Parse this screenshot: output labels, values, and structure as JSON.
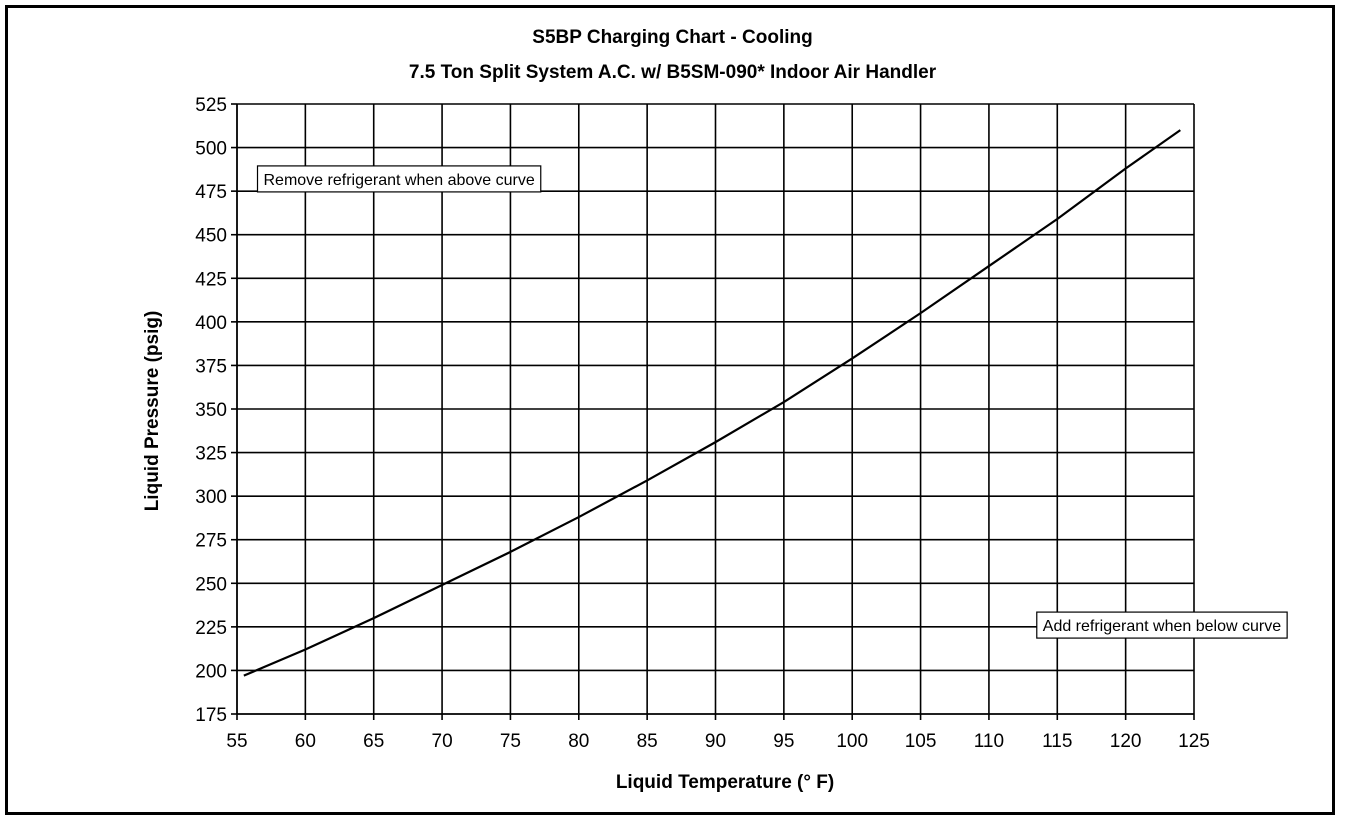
{
  "chart_data": {
    "type": "line",
    "title": "S5BP Charging Chart - Cooling",
    "subtitle": "7.5 Ton Split System A.C. w/ B5SM-090* Indoor Air Handler",
    "xlabel": "Liquid Temperature (° F)",
    "ylabel": "Liquid Pressure (psig)",
    "xlim": [
      55,
      125
    ],
    "ylim": [
      175,
      525
    ],
    "xticks": [
      55,
      60,
      65,
      70,
      75,
      80,
      85,
      90,
      95,
      100,
      105,
      110,
      115,
      120,
      125
    ],
    "yticks": [
      175,
      200,
      225,
      250,
      275,
      300,
      325,
      350,
      375,
      400,
      425,
      450,
      475,
      500,
      525
    ],
    "grid": true,
    "legend": "none",
    "series": [
      {
        "x": [
          55.5,
          60,
          65,
          70,
          75,
          80,
          85,
          90,
          95,
          100,
          105,
          110,
          115,
          120,
          124
        ],
        "y": [
          197,
          212,
          230,
          249,
          268,
          288,
          309,
          331,
          354,
          379,
          405,
          432,
          459,
          488,
          510
        ]
      }
    ],
    "annotations": [
      {
        "text": "Remove refrigerant when above curve",
        "x": 56.5,
        "y": 478
      },
      {
        "text": "Add refrigerant when below curve",
        "x": 113.5,
        "y": 222
      }
    ]
  }
}
